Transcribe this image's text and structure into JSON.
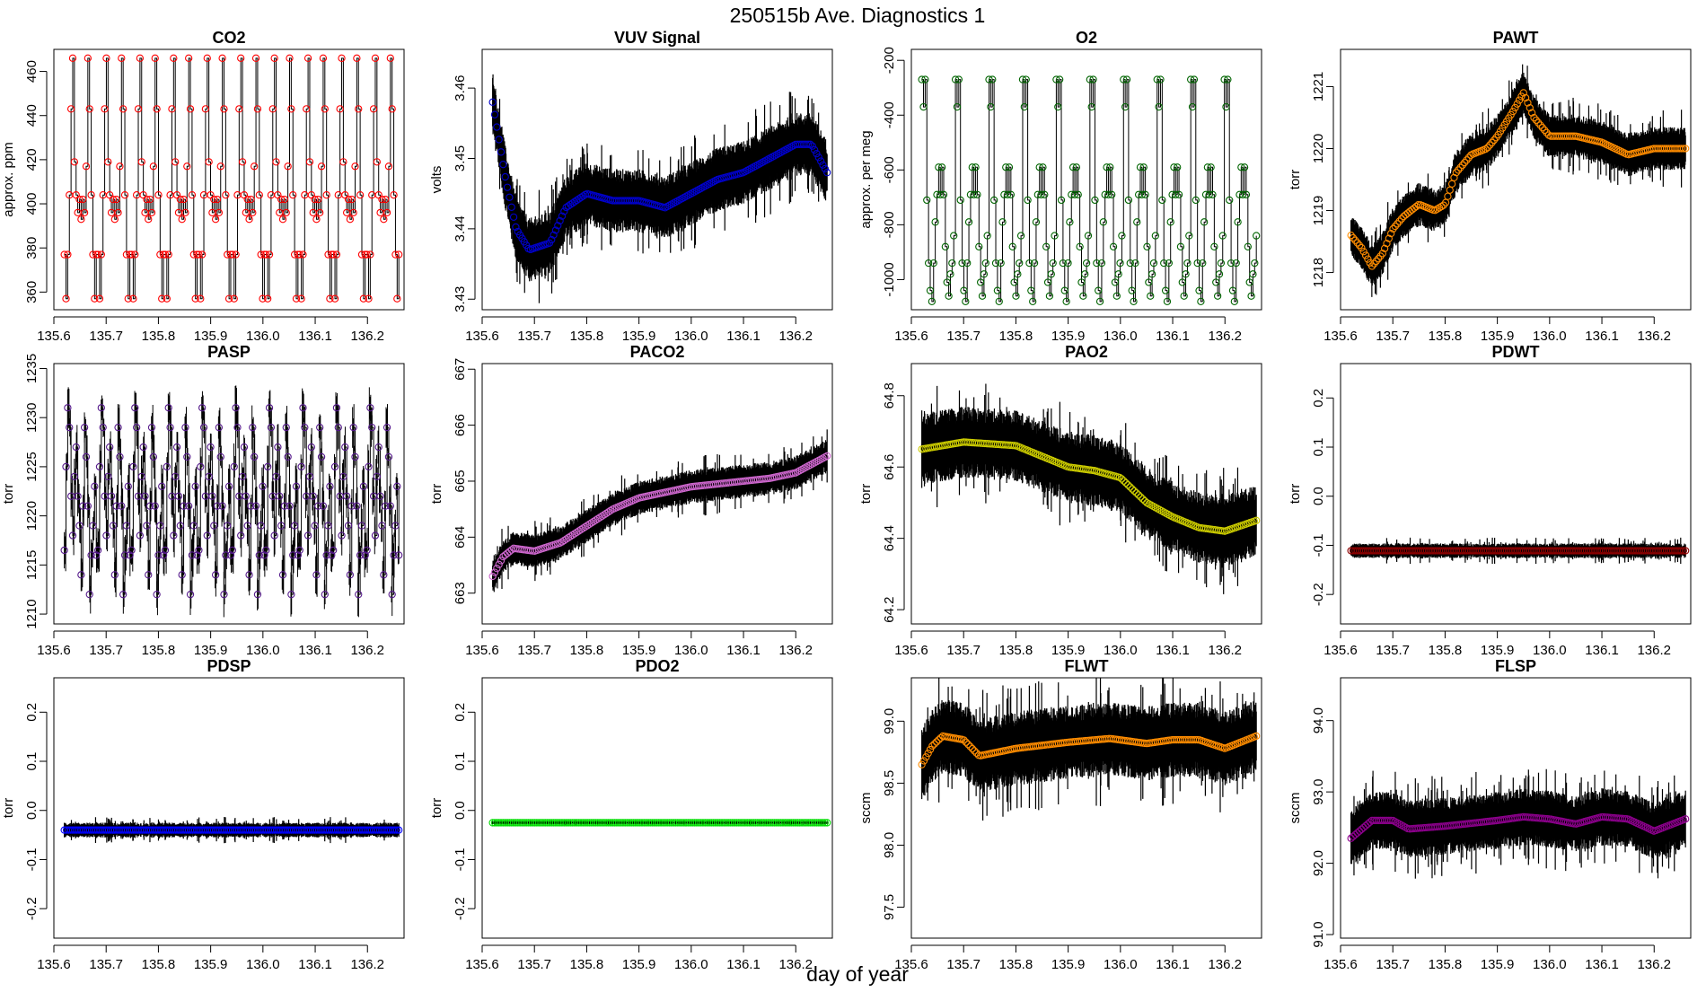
{
  "title": "250515b   Ave. Diagnostics 1",
  "xlabel": "day of year",
  "xlim": [
    135.6,
    136.27
  ],
  "xticks": [
    "135.6",
    "135.7",
    "135.8",
    "135.9",
    "136.0",
    "136.1",
    "136.2"
  ],
  "chart_data": [
    {
      "type": "scatter",
      "title": "CO2",
      "ylabel": "approx. ppm",
      "color": "#ff0000",
      "ylim": [
        352,
        470
      ],
      "yticks": [
        "360",
        "380",
        "400",
        "420",
        "440",
        "460"
      ],
      "pattern": [
        377,
        357,
        377,
        404,
        443,
        466,
        419,
        404,
        396,
        402,
        393,
        402,
        396,
        417,
        466,
        443,
        404,
        377,
        357,
        377
      ],
      "band_half": 0
    },
    {
      "type": "scatter",
      "title": "VUV Signal",
      "ylabel": "volts",
      "color": "#0000cc",
      "ylim": [
        3.4285,
        3.4655
      ],
      "yticks": [
        "3.43",
        "3.44",
        "3.45",
        "3.46"
      ],
      "knots": [
        [
          135.62,
          3.458
        ],
        [
          135.645,
          3.447
        ],
        [
          135.665,
          3.44
        ],
        [
          135.69,
          3.437
        ],
        [
          135.73,
          3.438
        ],
        [
          135.76,
          3.443
        ],
        [
          135.8,
          3.445
        ],
        [
          135.85,
          3.444
        ],
        [
          135.9,
          3.444
        ],
        [
          135.95,
          3.443
        ],
        [
          136.0,
          3.445
        ],
        [
          136.05,
          3.447
        ],
        [
          136.1,
          3.448
        ],
        [
          136.15,
          3.45
        ],
        [
          136.2,
          3.452
        ],
        [
          136.23,
          3.452
        ],
        [
          136.26,
          3.448
        ]
      ],
      "band_half": 0.0045
    },
    {
      "type": "scatter",
      "title": "O2",
      "ylabel": "approx. per meg",
      "color": "#006400",
      "ylim": [
        -1110,
        -160
      ],
      "yticks": [
        "-1000",
        "-800",
        "-600",
        "-400",
        "-200"
      ],
      "pattern": [
        -270,
        -370,
        -270,
        -710,
        -940,
        -1040,
        -1080,
        -940,
        -790,
        -690,
        -590,
        -690,
        -590,
        -690,
        -880,
        -1010,
        -1060,
        -980,
        -940,
        -840
      ],
      "band_half": 0
    },
    {
      "type": "scatter",
      "title": "PAWT",
      "ylabel": "torr",
      "color": "#ff8c00",
      "ylim": [
        1217.4,
        1221.6
      ],
      "yticks": [
        "1218",
        "1219",
        "1220",
        "1221"
      ],
      "knots": [
        [
          135.62,
          1218.6
        ],
        [
          135.64,
          1218.4
        ],
        [
          135.66,
          1218.1
        ],
        [
          135.68,
          1218.3
        ],
        [
          135.7,
          1218.7
        ],
        [
          135.72,
          1218.9
        ],
        [
          135.75,
          1219.1
        ],
        [
          135.78,
          1219.0
        ],
        [
          135.8,
          1219.1
        ],
        [
          135.82,
          1219.6
        ],
        [
          135.85,
          1219.9
        ],
        [
          135.88,
          1220.0
        ],
        [
          135.9,
          1220.2
        ],
        [
          135.93,
          1220.6
        ],
        [
          135.95,
          1220.9
        ],
        [
          135.97,
          1220.5
        ],
        [
          136.0,
          1220.2
        ],
        [
          136.05,
          1220.2
        ],
        [
          136.1,
          1220.1
        ],
        [
          136.15,
          1219.9
        ],
        [
          136.2,
          1220.0
        ],
        [
          136.26,
          1220.0
        ]
      ],
      "band_half": 0.35
    },
    {
      "type": "scatter",
      "title": "PASP",
      "ylabel": "torr",
      "color": "#551a8b",
      "ylim": [
        1209,
        1235.5
      ],
      "yticks": [
        "1210",
        "1215",
        "1220",
        "1225",
        "1230",
        "1235"
      ],
      "pattern": [
        1216.5,
        1225,
        1231,
        1229,
        1222,
        1218,
        1224,
        1227,
        1222,
        1219,
        1214,
        1221,
        1229,
        1226,
        1221,
        1212,
        1216,
        1219,
        1223,
        1216
      ],
      "band_half": 0.8
    },
    {
      "type": "scatter",
      "title": "PACO2",
      "ylabel": "torr",
      "color": "#cc66cc",
      "ylim": [
        662.45,
        667.1
      ],
      "yticks": [
        "663",
        "664",
        "665",
        "666",
        "667"
      ],
      "knots": [
        [
          135.62,
          663.3
        ],
        [
          135.64,
          663.65
        ],
        [
          135.66,
          663.8
        ],
        [
          135.7,
          663.75
        ],
        [
          135.75,
          663.9
        ],
        [
          135.8,
          664.2
        ],
        [
          135.85,
          664.5
        ],
        [
          135.9,
          664.7
        ],
        [
          135.95,
          664.8
        ],
        [
          136.0,
          664.9
        ],
        [
          136.05,
          664.95
        ],
        [
          136.1,
          665.0
        ],
        [
          136.15,
          665.05
        ],
        [
          136.2,
          665.15
        ],
        [
          136.26,
          665.45
        ]
      ],
      "band_half": 0.3
    },
    {
      "type": "scatter",
      "title": "PAO2",
      "ylabel": "torr",
      "color": "#cccc00",
      "ylim": [
        64.16,
        64.89
      ],
      "yticks": [
        "64.2",
        "64.4",
        "64.6",
        "64.8"
      ],
      "knots": [
        [
          135.62,
          64.65
        ],
        [
          135.7,
          64.67
        ],
        [
          135.8,
          64.66
        ],
        [
          135.85,
          64.63
        ],
        [
          135.9,
          64.6
        ],
        [
          135.95,
          64.59
        ],
        [
          136.0,
          64.57
        ],
        [
          136.05,
          64.5
        ],
        [
          136.1,
          64.46
        ],
        [
          136.15,
          64.43
        ],
        [
          136.2,
          64.42
        ],
        [
          136.26,
          64.45
        ]
      ],
      "band_half": 0.1
    },
    {
      "type": "scatter",
      "title": "PDWT",
      "ylabel": "torr",
      "color": "#8b0000",
      "ylim": [
        -0.26,
        0.27
      ],
      "yticks": [
        "-0.2",
        "-0.1",
        "0.0",
        "0.1",
        "0.2"
      ],
      "knots": [
        [
          135.62,
          -0.111
        ],
        [
          136.26,
          -0.111
        ]
      ],
      "band_half": 0.015
    },
    {
      "type": "scatter",
      "title": "PDSP",
      "ylabel": "torr",
      "color": "#0000ff",
      "ylim": [
        -0.26,
        0.27
      ],
      "yticks": [
        "-0.2",
        "-0.1",
        "0.0",
        "0.1",
        "0.2"
      ],
      "knots": [
        [
          135.62,
          -0.04
        ],
        [
          136.26,
          -0.04
        ]
      ],
      "band_half": 0.015
    },
    {
      "type": "scatter",
      "title": "PDO2",
      "ylabel": "torr",
      "color": "#00dd00",
      "ylim": [
        -0.26,
        0.27
      ],
      "yticks": [
        "-0.2",
        "-0.1",
        "0.0",
        "0.1",
        "0.2"
      ],
      "knots": [
        [
          135.62,
          -0.025
        ],
        [
          136.26,
          -0.025
        ]
      ],
      "band_half": 0.003
    },
    {
      "type": "scatter",
      "title": "FLWT",
      "ylabel": "sccm",
      "color": "#ff8c00",
      "ylim": [
        97.25,
        99.35
      ],
      "yticks": [
        "97.5",
        "98.0",
        "98.5",
        "99.0"
      ],
      "knots": [
        [
          135.62,
          98.65
        ],
        [
          135.64,
          98.8
        ],
        [
          135.66,
          98.88
        ],
        [
          135.7,
          98.85
        ],
        [
          135.73,
          98.72
        ],
        [
          135.8,
          98.78
        ],
        [
          135.9,
          98.83
        ],
        [
          135.98,
          98.86
        ],
        [
          136.05,
          98.82
        ],
        [
          136.1,
          98.85
        ],
        [
          136.15,
          98.85
        ],
        [
          136.2,
          98.78
        ],
        [
          136.26,
          98.88
        ]
      ],
      "band_half": 0.3
    },
    {
      "type": "scatter",
      "title": "FLSP",
      "ylabel": "sccm",
      "color": "#8b008b",
      "ylim": [
        90.95,
        94.6
      ],
      "yticks": [
        "91.0",
        "92.0",
        "93.0",
        "94.0"
      ],
      "knots": [
        [
          135.62,
          92.35
        ],
        [
          135.66,
          92.6
        ],
        [
          135.7,
          92.6
        ],
        [
          135.73,
          92.48
        ],
        [
          135.8,
          92.52
        ],
        [
          135.9,
          92.6
        ],
        [
          135.95,
          92.65
        ],
        [
          136.0,
          92.62
        ],
        [
          136.05,
          92.55
        ],
        [
          136.1,
          92.65
        ],
        [
          136.15,
          92.62
        ],
        [
          136.2,
          92.45
        ],
        [
          136.26,
          92.62
        ]
      ],
      "band_half": 0.4
    }
  ]
}
